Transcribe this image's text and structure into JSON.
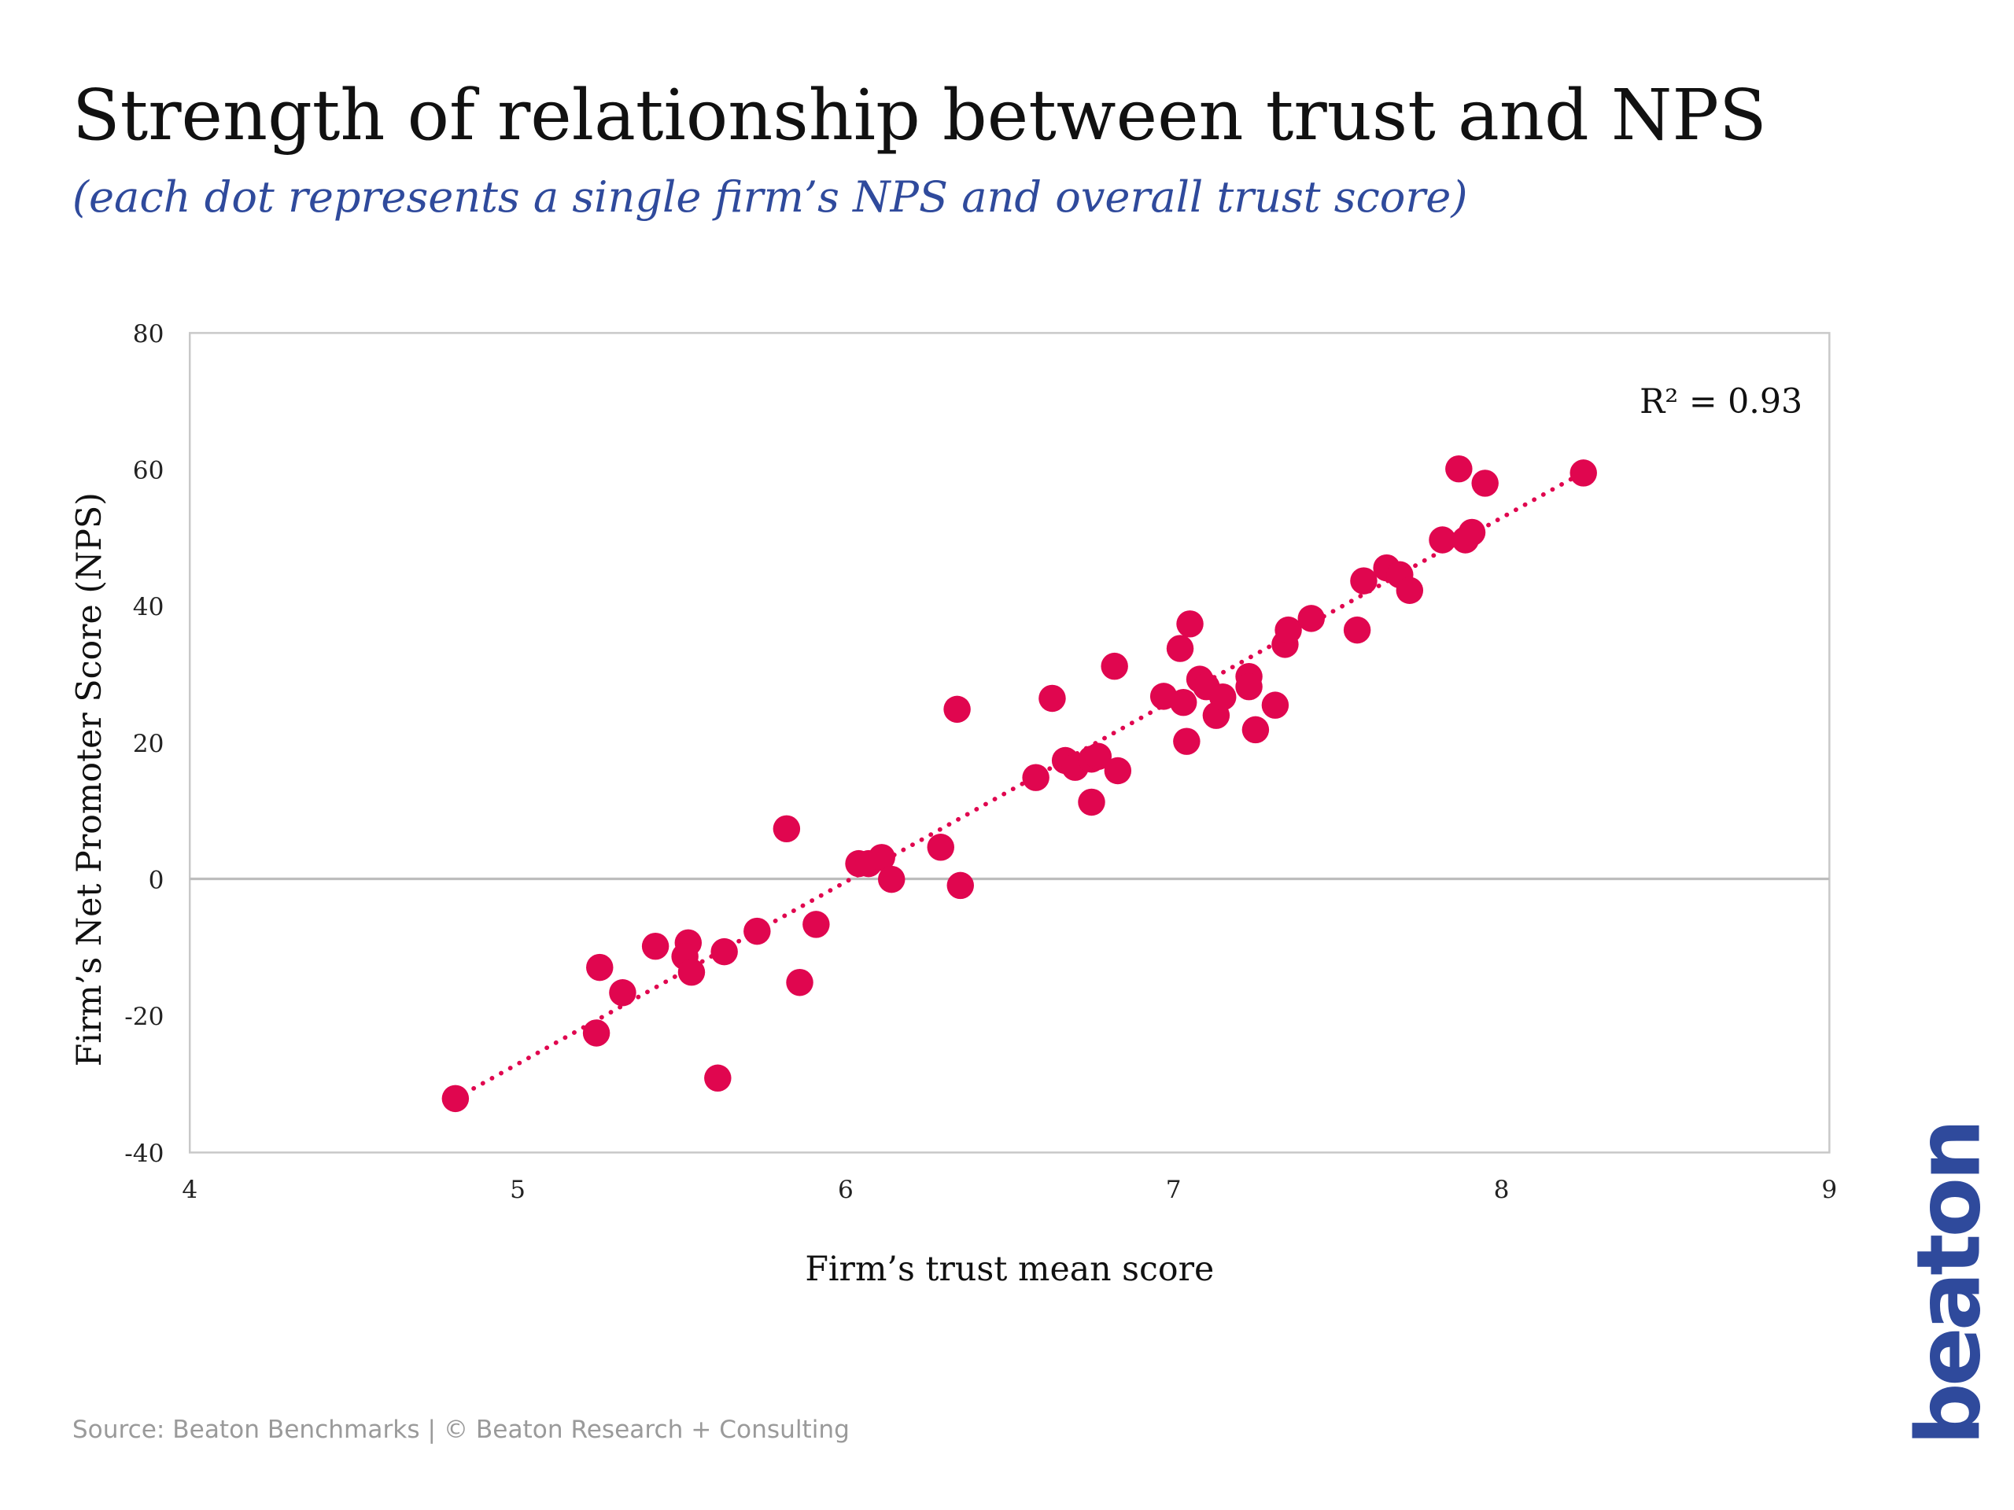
{
  "title": "Strength of relationship between trust and NPS",
  "subtitle": "(each dot represents a single firm’s NPS and overall trust score)",
  "source": "Source: Beaton Benchmarks | © Beaton Research + Consulting",
  "logo": "beaton",
  "colors": {
    "point": "#e0064f",
    "subtitle": "#2f4a9c",
    "logo": "#2f4a9c"
  },
  "chart_data": {
    "type": "scatter",
    "title": "Strength of relationship between trust and NPS",
    "xlabel": "Firm’s trust mean score",
    "ylabel": "Firm’s Net Promoter Score (NPS)",
    "xlim": [
      4,
      9
    ],
    "ylim": [
      -40,
      80
    ],
    "xticks": [
      "4",
      "5",
      "6",
      "7",
      "8",
      "9"
    ],
    "yticks": [
      "80",
      "60",
      "40",
      "20",
      "0",
      "-20",
      "-40"
    ],
    "annotation": "R² = 0.93",
    "trendline": {
      "x": [
        4.81,
        8.25
      ],
      "y": [
        -32.1,
        59.6
      ],
      "style": "dotted"
    },
    "points": [
      [
        4.81,
        -32.1
      ],
      [
        5.24,
        -22.5
      ],
      [
        5.25,
        -12.9
      ],
      [
        5.32,
        -16.6
      ],
      [
        5.42,
        -9.8
      ],
      [
        5.52,
        -9.3
      ],
      [
        5.51,
        -11.3
      ],
      [
        5.53,
        -13.6
      ],
      [
        5.61,
        -29.1
      ],
      [
        5.63,
        -10.6
      ],
      [
        5.73,
        -7.6
      ],
      [
        5.82,
        7.4
      ],
      [
        5.86,
        -15.1
      ],
      [
        5.91,
        -6.6
      ],
      [
        6.04,
        2.3
      ],
      [
        6.07,
        2.3
      ],
      [
        6.11,
        3.2
      ],
      [
        6.14,
        0
      ],
      [
        6.29,
        4.7
      ],
      [
        6.34,
        24.9
      ],
      [
        6.35,
        -0.9
      ],
      [
        6.58,
        14.9
      ],
      [
        6.63,
        26.5
      ],
      [
        6.67,
        17.4
      ],
      [
        6.7,
        16.4
      ],
      [
        6.75,
        17.6
      ],
      [
        6.77,
        18.0
      ],
      [
        6.75,
        11.3
      ],
      [
        6.82,
        31.2
      ],
      [
        6.83,
        15.9
      ],
      [
        6.97,
        26.8
      ],
      [
        7.02,
        33.8
      ],
      [
        7.03,
        25.9
      ],
      [
        7.05,
        37.4
      ],
      [
        7.04,
        20.2
      ],
      [
        7.08,
        29.3
      ],
      [
        7.1,
        28.2
      ],
      [
        7.13,
        24.0
      ],
      [
        7.15,
        26.7
      ],
      [
        7.23,
        29.7
      ],
      [
        7.23,
        28.2
      ],
      [
        7.25,
        21.9
      ],
      [
        7.31,
        25.5
      ],
      [
        7.34,
        34.4
      ],
      [
        7.35,
        36.5
      ],
      [
        7.42,
        38.2
      ],
      [
        7.56,
        36.5
      ],
      [
        7.58,
        43.7
      ],
      [
        7.65,
        45.6
      ],
      [
        7.69,
        44.6
      ],
      [
        7.72,
        42.3
      ],
      [
        7.82,
        49.7
      ],
      [
        7.87,
        60.1
      ],
      [
        7.89,
        49.7
      ],
      [
        7.91,
        50.8
      ],
      [
        7.95,
        58.0
      ],
      [
        8.25,
        59.5
      ]
    ]
  }
}
